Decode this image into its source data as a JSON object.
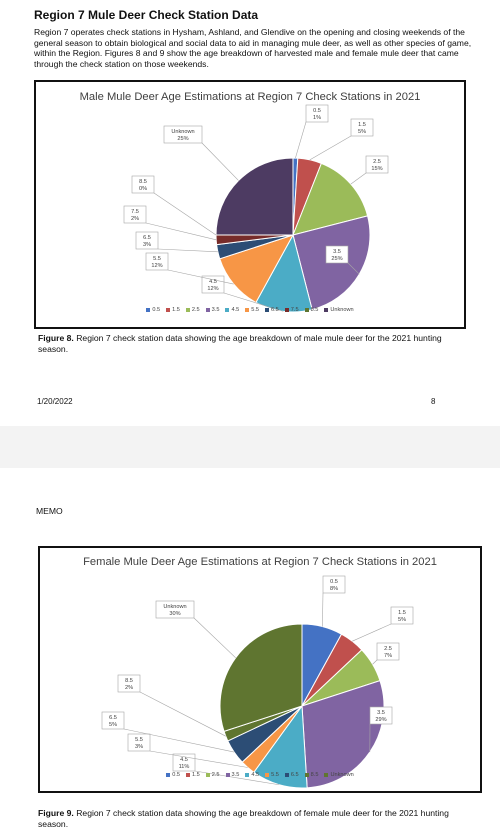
{
  "page1": {
    "section_title": "Region 7 Mule Deer Check Station Data",
    "intro": "Region 7 operates check stations in Hysham, Ashland, and Glendive on the opening and closing weekends of the general season to obtain biological and social data to aid in managing mule deer, as well as other species of game, within the Region. Figures 8 and 9 show the age breakdown of harvested male and female mule deer that came through the check station on those weekends.",
    "caption_label": "Figure 8.",
    "caption_text": " Region 7 check station data showing the age breakdown of male mule deer for the 2021 hunting season.",
    "footer_date": "1/20/2022",
    "footer_page": "8"
  },
  "page2": {
    "memo": "MEMO",
    "caption_label": "Figure 9.",
    "caption_text": " Region 7 check station data showing the age breakdown of female mule deer for the 2021 hunting season."
  },
  "colors": {
    "0.5": "#4472c4",
    "1.5": "#c0504d",
    "2.5": "#9bbb59",
    "3.5": "#8064a2",
    "4.5": "#4bacc6",
    "5.5": "#f79646",
    "6.5": "#2c4d75",
    "7.5": "#772c2a",
    "8.5": "#5f7530",
    "Unknown": "#4d3b62",
    "Unknown_female": "#5f7530"
  },
  "chart_data": [
    {
      "type": "pie",
      "title": "Male Mule Deer Age Estimations at Region 7 Check Stations in 2021",
      "categories": [
        "0.5",
        "1.5",
        "2.5",
        "3.5",
        "4.5",
        "5.5",
        "6.5",
        "7.5",
        "8.5",
        "Unknown"
      ],
      "values": [
        1,
        5,
        15,
        25,
        12,
        12,
        3,
        2,
        0,
        25
      ],
      "data_labels": [
        "0.5\n1%",
        "1.5\n5%",
        "2.5\n15%",
        "3.5\n25%",
        "4.5\n12%",
        "5.5\n12%",
        "6.5\n3%",
        "7.5\n2%",
        "8.5\n0%",
        "Unknown\n25%"
      ],
      "legend": [
        "0.5",
        "1.5",
        "2.5",
        "3.5",
        "4.5",
        "5.5",
        "6.5",
        "7.5",
        "8.5",
        "Unknown"
      ],
      "legend_position": "bottom"
    },
    {
      "type": "pie",
      "title": "Female Mule Deer Age Estimations at Region 7 Check Stations in 2021",
      "categories": [
        "0.5",
        "1.5",
        "2.5",
        "3.5",
        "4.5",
        "5.5",
        "6.5",
        "8.5",
        "Unknown"
      ],
      "values": [
        8,
        5,
        7,
        29,
        11,
        3,
        5,
        2,
        30
      ],
      "data_labels": [
        "0.5\n8%",
        "1.5\n5%",
        "2.5\n7%",
        "3.5\n29%",
        "4.5\n11%",
        "5.5\n3%",
        "6.5\n5%",
        "8.5\n2%",
        "Unknown\n30%"
      ],
      "legend": [
        "0.5",
        "1.5",
        "2.5",
        "3.5",
        "4.5",
        "5.5",
        "6.5",
        "8.5",
        "Unknown"
      ],
      "legend_position": "bottom"
    }
  ]
}
